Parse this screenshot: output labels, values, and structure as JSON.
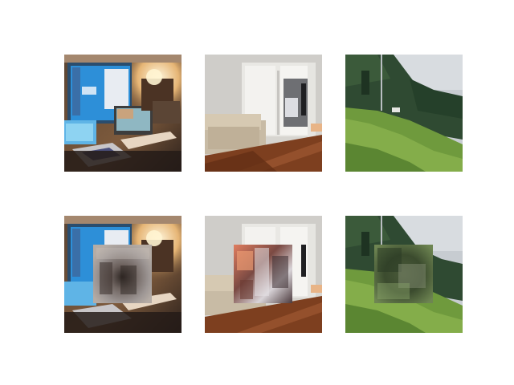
{
  "figure": {
    "rows": [
      {
        "tiles": [
          {
            "subject": "desk-with-monitors",
            "masked": false
          },
          {
            "subject": "living-room-with-sofa",
            "masked": false
          },
          {
            "subject": "grassy-hillside",
            "masked": false
          }
        ]
      },
      {
        "tiles": [
          {
            "subject": "desk-with-monitors",
            "masked": true
          },
          {
            "subject": "living-room-with-sofa",
            "masked": true
          },
          {
            "subject": "grassy-hillside",
            "masked": true
          }
        ]
      }
    ]
  }
}
